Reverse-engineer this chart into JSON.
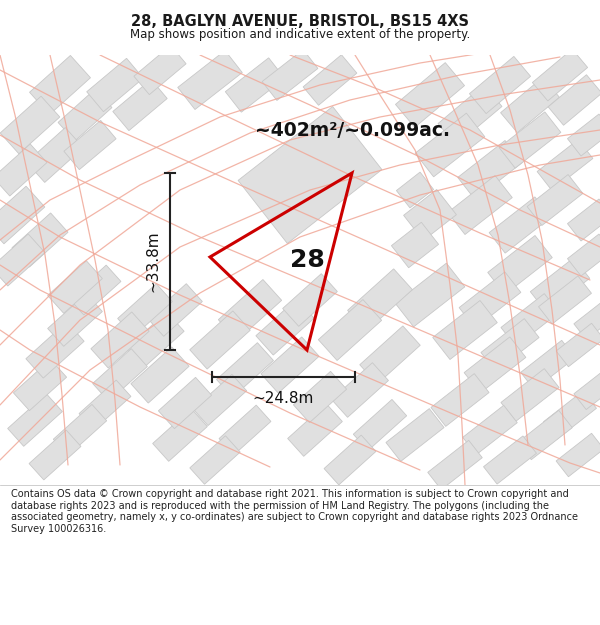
{
  "title": "28, BAGLYN AVENUE, BRISTOL, BS15 4XS",
  "subtitle": "Map shows position and indicative extent of the property.",
  "footer": "Contains OS data © Crown copyright and database right 2021. This information is subject to Crown copyright and database rights 2023 and is reproduced with the permission of HM Land Registry. The polygons (including the associated geometry, namely x, y co-ordinates) are subject to Crown copyright and database rights 2023 Ordnance Survey 100026316.",
  "area_label": "~402m²/~0.099ac.",
  "number_label": "28",
  "dim_h": "~33.8m",
  "dim_w": "~24.8m",
  "map_bg": "#f7f7f7",
  "title_color": "#1a1a1a",
  "footer_color": "#222222",
  "red_color": "#cc0000",
  "property_fill": "none",
  "building_fill": "#e0e0e0",
  "building_edge": "#c8c8c8",
  "road_color": "#f0a898"
}
